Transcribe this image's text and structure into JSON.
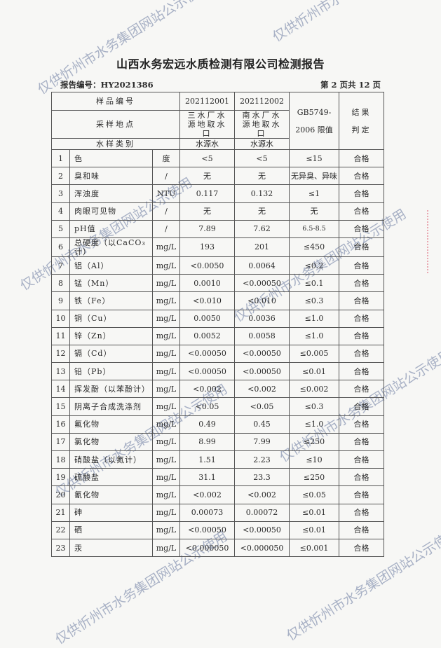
{
  "watermark": "仅供忻州市水务集团网站公示使用",
  "title": "山西水务宏远水质检测有限公司检测报告",
  "report_number": "报告编号：HY2021386",
  "page_info": "第 2 页共 12 页",
  "header": {
    "sample_id_label": "样品编号",
    "sample_ids": [
      "202112001",
      "202112002"
    ],
    "site_label": "采样地点",
    "sites": [
      "三水厂水源地取水口",
      "南水厂水源地取水口"
    ],
    "type_label": "水样类别",
    "types": [
      "水源水",
      "水源水"
    ],
    "limit_label_1": "GB5749-",
    "limit_label_2": "2006 限值",
    "result_label_1": "结果",
    "result_label_2": "判定"
  },
  "rows": [
    {
      "no": "1",
      "item": "色",
      "unit": "度",
      "s1": "<5",
      "s2": "<5",
      "limit": "≤15",
      "result": "合格"
    },
    {
      "no": "2",
      "item": "臭和味",
      "unit": "/",
      "s1": "无",
      "s2": "无",
      "limit": "无异臭、异味",
      "result": "合格"
    },
    {
      "no": "3",
      "item": "浑浊度",
      "unit": "NTU",
      "s1": "0.117",
      "s2": "0.132",
      "limit": "≤1",
      "result": "合格"
    },
    {
      "no": "4",
      "item": "肉眼可见物",
      "unit": "/",
      "s1": "无",
      "s2": "无",
      "limit": "无",
      "result": "合格"
    },
    {
      "no": "5",
      "item": "pH值",
      "unit": "/",
      "s1": "7.89",
      "s2": "7.62",
      "limit": "6.5-8.5",
      "result": "合格"
    },
    {
      "no": "6",
      "item": "总硬度（以CaCO₃计）",
      "unit": "mg/L",
      "s1": "193",
      "s2": "201",
      "limit": "≤450",
      "result": "合格"
    },
    {
      "no": "7",
      "item": "铝（Al）",
      "unit": "mg/L",
      "s1": "<0.0050",
      "s2": "0.0064",
      "limit": "≤0.2",
      "result": "合格"
    },
    {
      "no": "8",
      "item": "锰（Mn）",
      "unit": "mg/L",
      "s1": "0.0010",
      "s2": "<0.00050",
      "limit": "≤0.1",
      "result": "合格"
    },
    {
      "no": "9",
      "item": "铁（Fe）",
      "unit": "mg/L",
      "s1": "<0.010",
      "s2": "<0.010",
      "limit": "≤0.3",
      "result": "合格"
    },
    {
      "no": "10",
      "item": "铜（Cu）",
      "unit": "mg/L",
      "s1": "0.0050",
      "s2": "0.0036",
      "limit": "≤1.0",
      "result": "合格"
    },
    {
      "no": "11",
      "item": "锌（Zn）",
      "unit": "mg/L",
      "s1": "0.0052",
      "s2": "0.0058",
      "limit": "≤1.0",
      "result": "合格"
    },
    {
      "no": "12",
      "item": "镉（Cd）",
      "unit": "mg/L",
      "s1": "<0.00050",
      "s2": "<0.00050",
      "limit": "≤0.005",
      "result": "合格"
    },
    {
      "no": "13",
      "item": "铅（Pb）",
      "unit": "mg/L",
      "s1": "<0.00050",
      "s2": "<0.00050",
      "limit": "≤0.01",
      "result": "合格"
    },
    {
      "no": "14",
      "item": "挥发酚（以苯酚计）",
      "unit": "mg/L",
      "s1": "<0.002",
      "s2": "<0.002",
      "limit": "≤0.002",
      "result": "合格"
    },
    {
      "no": "15",
      "item": "阴离子合成洗涤剂",
      "unit": "mg/L",
      "s1": "<0.05",
      "s2": "<0.05",
      "limit": "≤0.3",
      "result": "合格"
    },
    {
      "no": "16",
      "item": "氟化物",
      "unit": "mg/L",
      "s1": "0.49",
      "s2": "0.45",
      "limit": "≤1.0",
      "result": "合格"
    },
    {
      "no": "17",
      "item": "氯化物",
      "unit": "mg/L",
      "s1": "8.99",
      "s2": "7.99",
      "limit": "≤250",
      "result": "合格"
    },
    {
      "no": "18",
      "item": "硝酸盐（以氮计）",
      "unit": "mg/L",
      "s1": "1.51",
      "s2": "2.23",
      "limit": "≤10",
      "result": "合格"
    },
    {
      "no": "19",
      "item": "硫酸盐",
      "unit": "mg/L",
      "s1": "31.1",
      "s2": "23.3",
      "limit": "≤250",
      "result": "合格"
    },
    {
      "no": "20",
      "item": "氰化物",
      "unit": "mg/L",
      "s1": "<0.002",
      "s2": "<0.002",
      "limit": "≤0.05",
      "result": "合格"
    },
    {
      "no": "21",
      "item": "砷",
      "unit": "mg/L",
      "s1": "0.00073",
      "s2": "0.00072",
      "limit": "≤0.01",
      "result": "合格"
    },
    {
      "no": "22",
      "item": "硒",
      "unit": "mg/L",
      "s1": "<0.00050",
      "s2": "<0.00050",
      "limit": "≤0.01",
      "result": "合格"
    },
    {
      "no": "23",
      "item": "汞",
      "unit": "mg/L",
      "s1": "<0.000050",
      "s2": "<0.000050",
      "limit": "≤0.001",
      "result": "合格"
    }
  ]
}
